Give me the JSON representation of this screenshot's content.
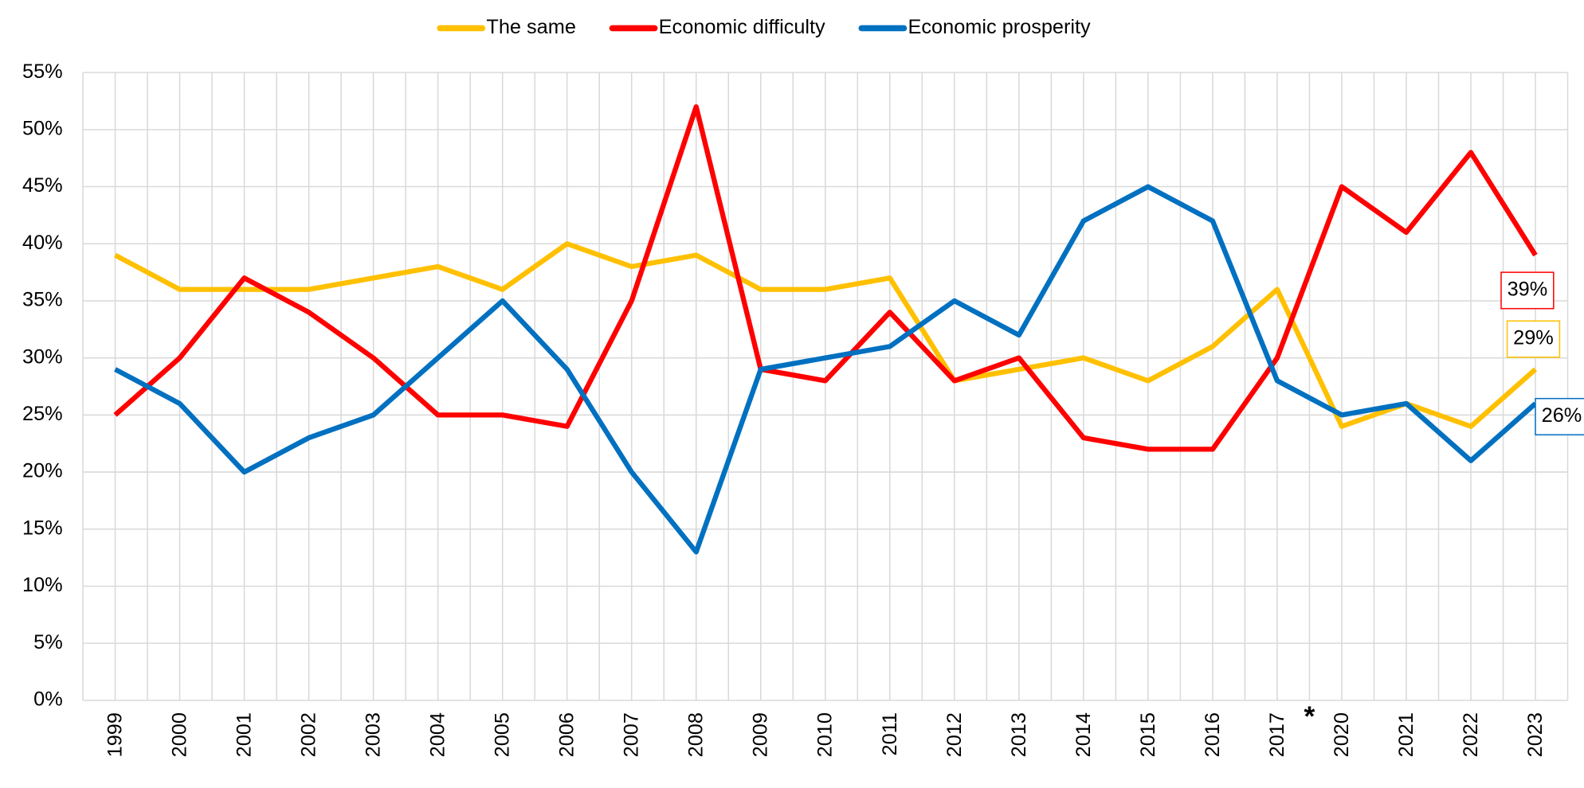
{
  "chart_data": {
    "type": "line",
    "categories": [
      "1999",
      "2000",
      "2001",
      "2002",
      "2003",
      "2004",
      "2005",
      "2006",
      "2007",
      "2008",
      "2009",
      "2010",
      "2011",
      "2012",
      "2013",
      "2014",
      "2015",
      "2016",
      "2017",
      "2020",
      "2021",
      "2022",
      "2023"
    ],
    "annotation": "*",
    "series": [
      {
        "name": "The same",
        "color": "#ffc000",
        "values": [
          39,
          36,
          36,
          36,
          37,
          38,
          36,
          40,
          38,
          39,
          36,
          36,
          37,
          28,
          29,
          30,
          28,
          31,
          36,
          24,
          26,
          24,
          29
        ],
        "value_labels": [
          null,
          null,
          null,
          null,
          null,
          null,
          null,
          null,
          null,
          null,
          null,
          null,
          null,
          null,
          null,
          null,
          null,
          null,
          null,
          null,
          null,
          null,
          "29%"
        ]
      },
      {
        "name": "Economic difficulty",
        "color": "#ff0000",
        "values": [
          25,
          30,
          37,
          34,
          30,
          25,
          25,
          24,
          35,
          52,
          29,
          28,
          34,
          28,
          30,
          23,
          22,
          22,
          30,
          45,
          41,
          48,
          39
        ],
        "value_labels": [
          null,
          null,
          null,
          null,
          null,
          null,
          null,
          null,
          null,
          null,
          null,
          null,
          null,
          null,
          null,
          null,
          null,
          null,
          null,
          null,
          null,
          null,
          "39%"
        ]
      },
      {
        "name": "Economic prosperity",
        "color": "#0070c0",
        "values": [
          29,
          26,
          20,
          23,
          25,
          30,
          35,
          29,
          20,
          13,
          29,
          30,
          31,
          35,
          32,
          42,
          45,
          42,
          28,
          25,
          26,
          21,
          26
        ],
        "value_labels": [
          null,
          null,
          null,
          null,
          null,
          null,
          null,
          null,
          null,
          null,
          null,
          null,
          null,
          null,
          null,
          null,
          null,
          null,
          null,
          null,
          null,
          null,
          "26%"
        ]
      }
    ],
    "ylim": [
      0,
      55
    ],
    "yticks": [
      {
        "value": 0,
        "label": "0%"
      },
      {
        "value": 5,
        "label": "5%"
      },
      {
        "value": 10,
        "label": "10%"
      },
      {
        "value": 15,
        "label": "15%"
      },
      {
        "value": 20,
        "label": "20%"
      },
      {
        "value": 25,
        "label": "25%"
      },
      {
        "value": 30,
        "label": "30%"
      },
      {
        "value": 35,
        "label": "35%"
      },
      {
        "value": 40,
        "label": "40%"
      },
      {
        "value": 45,
        "label": "45%"
      },
      {
        "value": 50,
        "label": "50%"
      },
      {
        "value": 55,
        "label": "55%"
      }
    ],
    "grid": true,
    "legend": "top"
  }
}
